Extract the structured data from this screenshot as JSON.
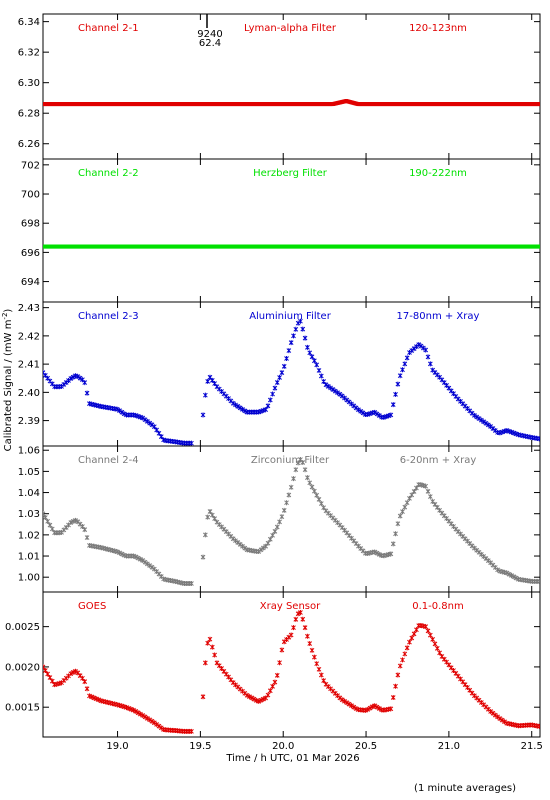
{
  "figure": {
    "xlabel": "Time / h UTC, 01 Mar 2026",
    "ylabel": "Calibrated Signal / (mW m",
    "ylabel_sup": "-2",
    "ylabel_close": ")",
    "footnote": "(1 minute averages)",
    "xlim": [
      18.55,
      21.55
    ],
    "xticks": [
      "19.0",
      "19.5",
      "20.0",
      "20.5",
      "21.0",
      "21.5"
    ],
    "xtick_values": [
      19.0,
      19.5,
      20.0,
      20.5,
      21.0,
      21.5
    ]
  },
  "chart_data": [
    {
      "type": "scatter",
      "channel": "Channel 2-1",
      "filter": "Lyman-alpha Filter",
      "band": "120-123nm",
      "color": "#e00000",
      "ylim": [
        6.25,
        6.345
      ],
      "yticks": [
        "6.26",
        "6.28",
        "6.30",
        "6.32",
        "6.34"
      ],
      "ytick_values": [
        6.26,
        6.28,
        6.3,
        6.32,
        6.34
      ],
      "annotation": [
        "9240",
        "62.4"
      ],
      "x": [
        18.55,
        19.0,
        19.5,
        20.0,
        20.3,
        20.38,
        20.45,
        21.0,
        21.55
      ],
      "values": [
        6.286,
        6.286,
        6.286,
        6.286,
        6.286,
        6.288,
        6.286,
        6.286,
        6.286
      ]
    },
    {
      "type": "scatter",
      "channel": "Channel 2-2",
      "filter": "Herzberg Filter",
      "band": "190-222nm",
      "color": "#00e000",
      "ylim": [
        692.6,
        702.4
      ],
      "yticks": [
        "694",
        "696",
        "698",
        "700",
        "702"
      ],
      "ytick_values": [
        694,
        696,
        698,
        700,
        702
      ],
      "x": [
        18.55,
        19.0,
        19.5,
        20.0,
        20.5,
        21.0,
        21.55
      ],
      "values": [
        696.4,
        696.4,
        696.4,
        696.4,
        696.4,
        696.4,
        696.4
      ]
    },
    {
      "type": "scatter",
      "channel": "Channel 2-3",
      "filter": "Aluminium Filter",
      "band": "17-80nm + Xray",
      "color": "#0000d0",
      "ylim": [
        2.381,
        2.432
      ],
      "yticks": [
        "2.39",
        "2.40",
        "2.41",
        "2.42",
        "2.43"
      ],
      "ytick_values": [
        2.39,
        2.4,
        2.41,
        2.42,
        2.43
      ],
      "x": [
        18.55,
        18.62,
        18.66,
        18.72,
        18.75,
        18.8,
        18.83,
        18.9,
        19.0,
        19.05,
        19.1,
        19.15,
        19.22,
        19.28,
        19.35,
        19.4,
        19.45,
        19.5,
        19.51,
        19.53,
        19.55,
        19.6,
        19.7,
        19.78,
        19.85,
        19.9,
        19.96,
        20.0,
        20.05,
        20.08,
        20.1,
        20.12,
        20.15,
        20.2,
        20.25,
        20.35,
        20.45,
        20.5,
        20.55,
        20.6,
        20.65,
        20.7,
        20.76,
        20.82,
        20.86,
        20.9,
        20.95,
        21.05,
        21.15,
        21.25,
        21.3,
        21.35,
        21.42,
        21.5,
        21.55
      ],
      "values": [
        2.407,
        2.402,
        2.402,
        2.405,
        2.406,
        2.404,
        2.396,
        2.395,
        2.394,
        2.392,
        2.392,
        2.391,
        2.388,
        2.383,
        2.3825,
        2.382,
        2.382,
        2.3815,
        2.389,
        2.399,
        2.406,
        2.402,
        2.396,
        2.393,
        2.393,
        2.394,
        2.403,
        2.408,
        2.418,
        2.423,
        2.426,
        2.422,
        2.415,
        2.41,
        2.403,
        2.399,
        2.394,
        2.392,
        2.393,
        2.391,
        2.392,
        2.405,
        2.414,
        2.417,
        2.415,
        2.408,
        2.405,
        2.398,
        2.392,
        2.388,
        2.3855,
        2.3865,
        2.385,
        2.384,
        2.3835
      ]
    },
    {
      "type": "scatter",
      "channel": "Channel 2-4",
      "filter": "Zirconium Filter",
      "band": "6-20nm + Xray",
      "color": "#7a7a7a",
      "ylim": [
        0.993,
        1.062
      ],
      "yticks": [
        "1.00",
        "1.01",
        "1.02",
        "1.03",
        "1.04",
        "1.05",
        "1.06"
      ],
      "ytick_values": [
        1.0,
        1.01,
        1.02,
        1.03,
        1.04,
        1.05,
        1.06
      ],
      "x": [
        18.55,
        18.62,
        18.66,
        18.72,
        18.75,
        18.8,
        18.83,
        18.9,
        19.0,
        19.05,
        19.1,
        19.15,
        19.22,
        19.28,
        19.35,
        19.4,
        19.45,
        19.5,
        19.51,
        19.53,
        19.55,
        19.6,
        19.7,
        19.78,
        19.85,
        19.9,
        19.96,
        20.0,
        20.05,
        20.08,
        20.1,
        20.12,
        20.15,
        20.2,
        20.25,
        20.35,
        20.45,
        20.5,
        20.55,
        20.6,
        20.65,
        20.7,
        20.76,
        20.82,
        20.86,
        20.9,
        20.95,
        21.05,
        21.15,
        21.25,
        21.3,
        21.35,
        21.42,
        21.5,
        21.55
      ],
      "values": [
        1.03,
        1.021,
        1.021,
        1.026,
        1.027,
        1.023,
        1.015,
        1.014,
        1.012,
        1.01,
        1.01,
        1.008,
        1.004,
        0.999,
        0.998,
        0.997,
        0.997,
        0.997,
        1.005,
        1.02,
        1.032,
        1.026,
        1.018,
        1.013,
        1.012,
        1.015,
        1.023,
        1.03,
        1.043,
        1.052,
        1.056,
        1.054,
        1.046,
        1.039,
        1.032,
        1.024,
        1.015,
        1.011,
        1.012,
        1.01,
        1.011,
        1.028,
        1.037,
        1.044,
        1.043,
        1.036,
        1.031,
        1.022,
        1.014,
        1.007,
        1.003,
        1.002,
        0.999,
        0.998,
        0.998
      ]
    },
    {
      "type": "scatter",
      "channel": "GOES",
      "filter": "Xray Sensor",
      "band": "0.1-0.8nm",
      "color": "#e00000",
      "ylim": [
        0.00113,
        0.00293
      ],
      "yticks": [
        "0.0015",
        "0.0020",
        "0.0025"
      ],
      "ytick_values": [
        0.0015,
        0.002,
        0.0025
      ],
      "x": [
        18.55,
        18.62,
        18.66,
        18.72,
        18.75,
        18.8,
        18.83,
        18.9,
        19.0,
        19.05,
        19.1,
        19.15,
        19.22,
        19.28,
        19.35,
        19.4,
        19.45,
        19.5,
        19.51,
        19.53,
        19.55,
        19.6,
        19.7,
        19.78,
        19.85,
        19.9,
        19.96,
        20.0,
        20.05,
        20.08,
        20.1,
        20.12,
        20.15,
        20.2,
        20.25,
        20.35,
        20.45,
        20.5,
        20.55,
        20.6,
        20.65,
        20.7,
        20.76,
        20.82,
        20.86,
        20.9,
        20.95,
        21.05,
        21.15,
        21.25,
        21.3,
        21.35,
        21.42,
        21.5,
        21.55
      ],
      "values": [
        0.002,
        0.00178,
        0.0018,
        0.00192,
        0.00195,
        0.00183,
        0.00164,
        0.00158,
        0.00153,
        0.0015,
        0.00146,
        0.0014,
        0.00131,
        0.00122,
        0.00121,
        0.0012,
        0.0012,
        0.00119,
        0.00145,
        0.00205,
        0.0024,
        0.00205,
        0.0018,
        0.00165,
        0.00157,
        0.00162,
        0.00185,
        0.0023,
        0.0024,
        0.00262,
        0.0027,
        0.00258,
        0.00235,
        0.00205,
        0.0018,
        0.0016,
        0.00147,
        0.00146,
        0.00152,
        0.00146,
        0.00148,
        0.00198,
        0.0023,
        0.00252,
        0.0025,
        0.00235,
        0.00215,
        0.0019,
        0.00165,
        0.00145,
        0.00137,
        0.0013,
        0.00127,
        0.00128,
        0.00126
      ]
    }
  ]
}
